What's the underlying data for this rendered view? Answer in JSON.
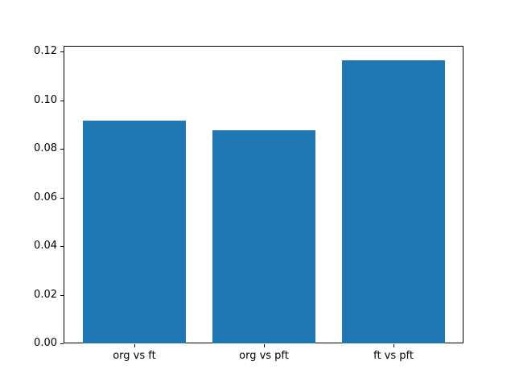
{
  "chart_data": {
    "type": "bar",
    "title": "",
    "xlabel": "",
    "ylabel": "",
    "categories": [
      "org vs ft",
      "org vs pft",
      "ft vs pft"
    ],
    "values": [
      0.0917,
      0.0877,
      0.1165
    ],
    "bar_color": "#1f77b4",
    "spine_color": "#000000",
    "ylim": [
      0,
      0.122
    ],
    "xlim": [
      -0.54,
      2.54
    ],
    "bar_width": 0.8,
    "yticks": [
      0,
      0.02,
      0.04,
      0.06,
      0.08,
      0.1,
      0.12
    ],
    "ytick_labels": [
      "0.00",
      "0.02",
      "0.04",
      "0.06",
      "0.08",
      "0.10",
      "0.12"
    ],
    "grid": false,
    "legend": null
  }
}
